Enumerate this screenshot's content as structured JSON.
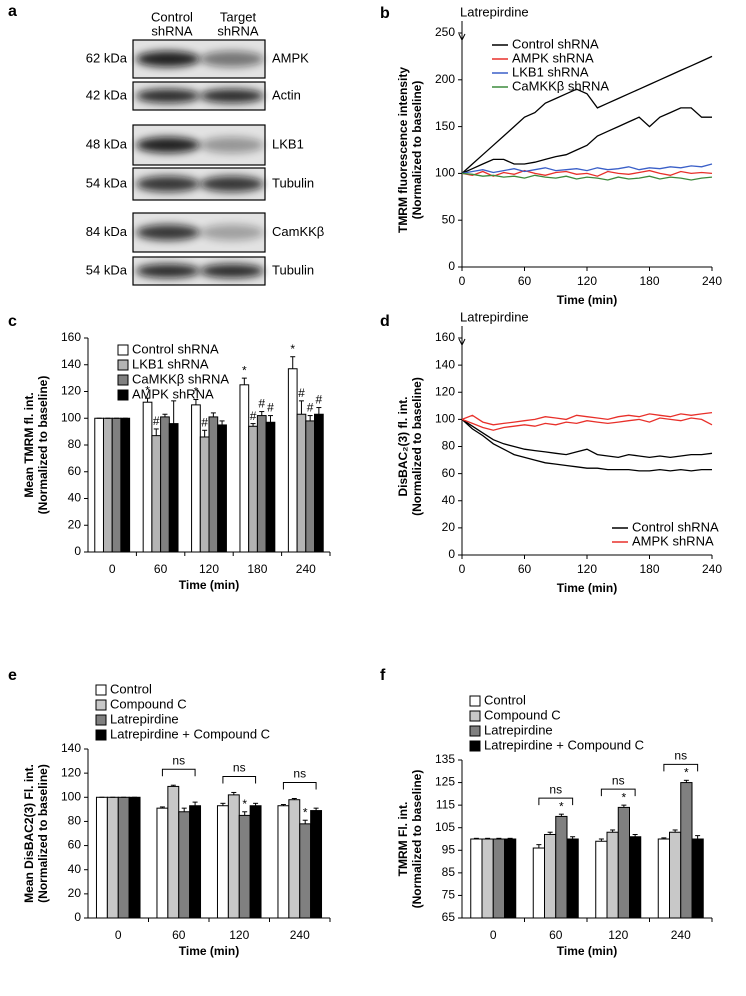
{
  "blot": {
    "panel": "a",
    "columns": [
      [
        "Control",
        "shRNA"
      ],
      [
        "Target",
        "shRNA"
      ]
    ],
    "rows": [
      {
        "size": "62 kDa",
        "protein": "AMPK"
      },
      {
        "size": "42 kDa",
        "protein": "Actin"
      },
      {
        "size": "48 kDa",
        "protein": "LKB1"
      },
      {
        "size": "54 kDa",
        "protein": "Tubulin"
      },
      {
        "size": "84 kDa",
        "protein": "CamKKβ"
      },
      {
        "size": "54 kDa",
        "protein": "Tubulin"
      }
    ]
  },
  "chart_data": [
    {
      "type": "line",
      "panel": "b",
      "ylabel": [
        "TMRM fluorescence intensity",
        "(Normalized to baseline)"
      ],
      "xlabel": "Time (min)",
      "annotation": {
        "text": "Latrepirdine",
        "x": 0
      },
      "legend": "upper left",
      "x": [
        0,
        10,
        20,
        30,
        40,
        50,
        60,
        70,
        80,
        90,
        100,
        110,
        120,
        130,
        140,
        150,
        160,
        170,
        180,
        190,
        200,
        210,
        220,
        230,
        240
      ],
      "xlim": [
        0,
        240
      ],
      "xticks": [
        0,
        60,
        120,
        180,
        240
      ],
      "ylim": [
        0,
        250
      ],
      "yticks": [
        0,
        50,
        100,
        150,
        200,
        250
      ],
      "series": [
        {
          "name": "Control shRNA",
          "color": "#000000",
          "values": [
            [
              100,
              110,
              120,
              130,
              140,
              150,
              160,
              165,
              175,
              180,
              185,
              190,
              185,
              170,
              175,
              180,
              185,
              190,
              195,
              200,
              205,
              210,
              215,
              220,
              225
            ],
            [
              100,
              105,
              110,
              115,
              115,
              110,
              110,
              112,
              115,
              118,
              120,
              125,
              130,
              140,
              145,
              150,
              155,
              160,
              150,
              160,
              165,
              170,
              170,
              160,
              160
            ]
          ]
        },
        {
          "name": "AMPK shRNA",
          "color": "#e8302a",
          "values": [
            [
              100,
              98,
              102,
              97,
              101,
              99,
              103,
              100,
              98,
              101,
              102,
              99,
              100,
              97,
              102,
              100,
              99,
              101,
              103,
              100,
              98,
              102,
              100,
              101,
              100
            ]
          ]
        },
        {
          "name": "LKB1 shRNA",
          "color": "#3a5fc8",
          "values": [
            [
              100,
              102,
              104,
              101,
              103,
              105,
              102,
              104,
              106,
              103,
              104,
              105,
              103,
              106,
              104,
              105,
              107,
              104,
              106,
              105,
              107,
              106,
              108,
              107,
              110
            ]
          ]
        },
        {
          "name": "CaMKKβ shRNA",
          "color": "#3c8a3c",
          "values": [
            [
              100,
              99,
              97,
              98,
              96,
              97,
              95,
              98,
              96,
              95,
              97,
              94,
              96,
              95,
              93,
              96,
              94,
              95,
              97,
              94,
              96,
              95,
              93,
              95,
              96
            ]
          ]
        }
      ]
    },
    {
      "type": "bar",
      "panel": "c",
      "ylabel": [
        "Mean TMRM fl. int.",
        "(Normalized to baseline)"
      ],
      "xlabel": "Time (min)",
      "legend": "upper left",
      "categories": [
        "0",
        "60",
        "120",
        "180",
        "240"
      ],
      "ylim": [
        0,
        160
      ],
      "yticks": [
        0,
        20,
        40,
        60,
        80,
        100,
        120,
        140,
        160
      ],
      "series": [
        {
          "name": "Control shRNA",
          "color": "#ffffff",
          "values": [
            100,
            112,
            110,
            125,
            137
          ],
          "errors": [
            0,
            3,
            4,
            5,
            9
          ],
          "significance": [
            null,
            "*",
            "*",
            "*",
            "*"
          ]
        },
        {
          "name": "LKB1 shRNA",
          "color": "#b4b4b4",
          "values": [
            100,
            87,
            86,
            94,
            103
          ],
          "errors": [
            0,
            5,
            5,
            2,
            10
          ],
          "significance": [
            null,
            "#",
            "#",
            "#",
            "#"
          ]
        },
        {
          "name": "CaMKKβ shRNA",
          "color": "#808080",
          "values": [
            100,
            101,
            101,
            102,
            98
          ],
          "errors": [
            0,
            2,
            3,
            3,
            4
          ],
          "significance": [
            null,
            null,
            null,
            "#",
            "#"
          ]
        },
        {
          "name": "AMPK shRNA",
          "color": "#000000",
          "values": [
            100,
            96,
            95,
            97,
            103
          ],
          "errors": [
            0,
            17,
            3,
            5,
            5
          ],
          "significance": [
            null,
            null,
            null,
            "#",
            "#"
          ]
        }
      ]
    },
    {
      "type": "line",
      "panel": "d",
      "ylabel": [
        "DisBAC₂(3) fl. int.",
        "(Normalized to baseline)"
      ],
      "xlabel": "Time (min)",
      "annotation": {
        "text": "Latrepirdine",
        "x": 0
      },
      "legend": "lower right",
      "x": [
        0,
        10,
        20,
        30,
        40,
        50,
        60,
        70,
        80,
        90,
        100,
        110,
        120,
        130,
        140,
        150,
        160,
        170,
        180,
        190,
        200,
        210,
        220,
        230,
        240
      ],
      "xlim": [
        0,
        240
      ],
      "xticks": [
        0,
        60,
        120,
        180,
        240
      ],
      "ylim": [
        0,
        160
      ],
      "yticks": [
        0,
        20,
        40,
        60,
        80,
        100,
        120,
        140,
        160
      ],
      "series": [
        {
          "name": "Control shRNA",
          "color": "#000000",
          "values": [
            [
              100,
              95,
              90,
              85,
              82,
              80,
              78,
              77,
              76,
              75,
              74,
              76,
              78,
              74,
              73,
              72,
              74,
              73,
              72,
              73,
              72,
              73,
              74,
              74,
              75
            ],
            [
              100,
              93,
              88,
              82,
              78,
              74,
              72,
              70,
              68,
              67,
              66,
              65,
              64,
              64,
              63,
              63,
              63,
              62,
              62,
              63,
              62,
              63,
              62,
              63,
              63
            ]
          ]
        },
        {
          "name": "AMPK shRNA",
          "color": "#e8302a",
          "values": [
            [
              100,
              103,
              98,
              96,
              97,
              98,
              99,
              100,
              102,
              101,
              100,
              103,
              102,
              101,
              100,
              102,
              103,
              102,
              104,
              103,
              102,
              104,
              103,
              104,
              105
            ],
            [
              100,
              97,
              94,
              92,
              94,
              95,
              96,
              95,
              97,
              96,
              98,
              97,
              99,
              98,
              97,
              98,
              99,
              100,
              98,
              101,
              100,
              99,
              101,
              100,
              96
            ]
          ]
        }
      ]
    },
    {
      "type": "bar",
      "panel": "e",
      "ylabel": [
        "Mean DisBAC2(3) Fl. int.",
        "(Normalized to baseline)"
      ],
      "xlabel": "Time (min)",
      "legend": "top",
      "categories": [
        "0",
        "60",
        "120",
        "240"
      ],
      "bracket_labels": [
        null,
        "ns",
        "ns",
        "ns"
      ],
      "ylim": [
        0,
        140
      ],
      "yticks": [
        0,
        20,
        40,
        60,
        80,
        100,
        120,
        140
      ],
      "series": [
        {
          "name": "Control",
          "color": "#ffffff",
          "values": [
            100,
            91,
            93,
            93
          ],
          "errors": [
            0,
            1,
            2,
            1
          ],
          "significance": [
            null,
            null,
            null,
            null
          ]
        },
        {
          "name": "Compound C",
          "color": "#c8c8c8",
          "values": [
            100,
            109,
            102,
            98
          ],
          "errors": [
            0,
            1,
            2,
            1
          ],
          "significance": [
            null,
            null,
            null,
            null
          ]
        },
        {
          "name": "Latrepirdine",
          "color": "#808080",
          "values": [
            100,
            88,
            85,
            78
          ],
          "errors": [
            0,
            3,
            3,
            3
          ],
          "significance": [
            null,
            null,
            "*",
            "*"
          ]
        },
        {
          "name": "Latrepirdine + Compound C",
          "color": "#000000",
          "values": [
            100,
            93,
            93,
            89
          ],
          "errors": [
            0,
            3,
            2,
            2
          ],
          "significance": [
            null,
            null,
            null,
            null
          ]
        }
      ]
    },
    {
      "type": "bar",
      "panel": "f",
      "ylabel": [
        "TMRM  Fl. int.",
        "(Normalized to baseline)"
      ],
      "xlabel": "Time (min)",
      "legend": "top",
      "categories": [
        "0",
        "60",
        "120",
        "240"
      ],
      "bracket_labels": [
        null,
        "ns",
        "ns",
        "ns"
      ],
      "ylim": [
        65,
        135
      ],
      "yticks": [
        65,
        75,
        85,
        95,
        105,
        115,
        125,
        135
      ],
      "series": [
        {
          "name": "Control",
          "color": "#ffffff",
          "values": [
            100,
            96,
            99,
            100
          ],
          "errors": [
            0.3,
            1.5,
            1,
            0.5
          ],
          "significance": [
            null,
            null,
            null,
            null
          ]
        },
        {
          "name": "Compound C",
          "color": "#c8c8c8",
          "values": [
            100,
            102,
            103,
            103
          ],
          "errors": [
            0.3,
            1,
            1,
            1
          ],
          "significance": [
            null,
            null,
            null,
            null
          ]
        },
        {
          "name": "Latrepirdine",
          "color": "#808080",
          "values": [
            100,
            110,
            114,
            125
          ],
          "errors": [
            0.3,
            1,
            1,
            1
          ],
          "significance": [
            null,
            "*",
            "*",
            "*"
          ]
        },
        {
          "name": "Latrepirdine + Compound C",
          "color": "#000000",
          "values": [
            100,
            100,
            101,
            100
          ],
          "errors": [
            0.3,
            1,
            1,
            1.5
          ],
          "significance": [
            null,
            null,
            null,
            null
          ]
        }
      ]
    }
  ]
}
